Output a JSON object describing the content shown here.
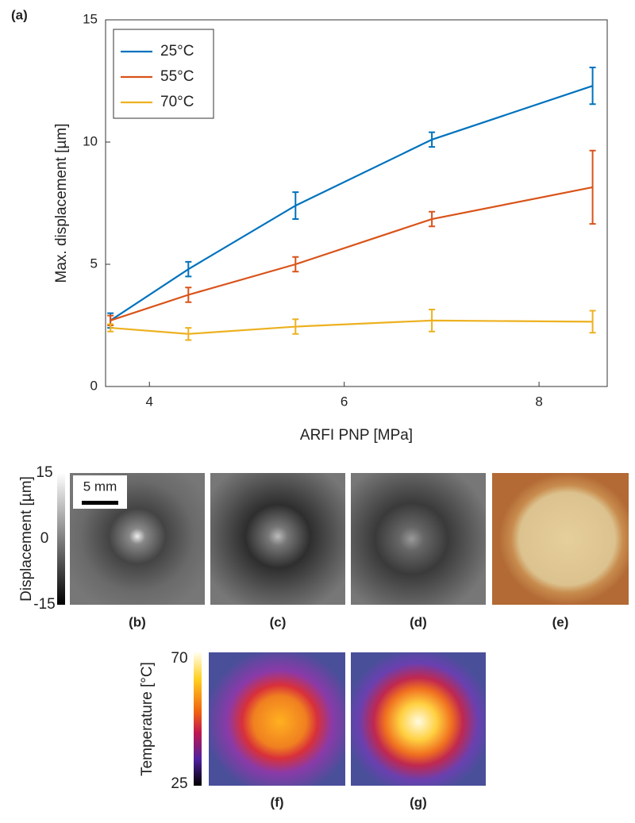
{
  "chart_data": {
    "type": "line",
    "panel_label": "(a)",
    "x_label": "ARFI PNP [MPa]",
    "y_label": "Max. displacement [µm]",
    "x": [
      3.6,
      4.4,
      5.5,
      6.9,
      8.55
    ],
    "series": [
      {
        "name": "25°C",
        "color": "#0072bd",
        "values": [
          2.7,
          4.8,
          7.4,
          10.1,
          12.3
        ],
        "errors": [
          0.3,
          0.3,
          0.55,
          0.3,
          0.75
        ]
      },
      {
        "name": "55°C",
        "color": "#d95319",
        "values": [
          2.7,
          3.75,
          5.0,
          6.85,
          8.15
        ],
        "errors": [
          0.2,
          0.3,
          0.3,
          0.3,
          1.5
        ]
      },
      {
        "name": "70°C",
        "color": "#edb120",
        "values": [
          2.4,
          2.15,
          2.45,
          2.7,
          2.65
        ],
        "errors": [
          0.15,
          0.25,
          0.3,
          0.45,
          0.45
        ]
      }
    ],
    "xlim": [
      3.55,
      8.7
    ],
    "ylim": [
      0,
      15
    ],
    "xticks": [
      4,
      6,
      8
    ],
    "yticks": [
      0,
      5,
      10,
      15
    ],
    "grid": false,
    "legend": "top-left"
  },
  "panels": {
    "displacement_colorbar": {
      "label": "Displacement [µm]",
      "lim": [
        -15,
        15
      ],
      "ticks": [
        -15,
        0,
        15
      ]
    },
    "temperature_colorbar": {
      "label": "Temperature [°C]",
      "lim": [
        25,
        70
      ],
      "ticks": [
        25,
        70
      ]
    },
    "scale_bar": "5 mm",
    "labels": [
      "(b)",
      "(c)",
      "(d)",
      "(e)",
      "(f)",
      "(g)"
    ]
  }
}
